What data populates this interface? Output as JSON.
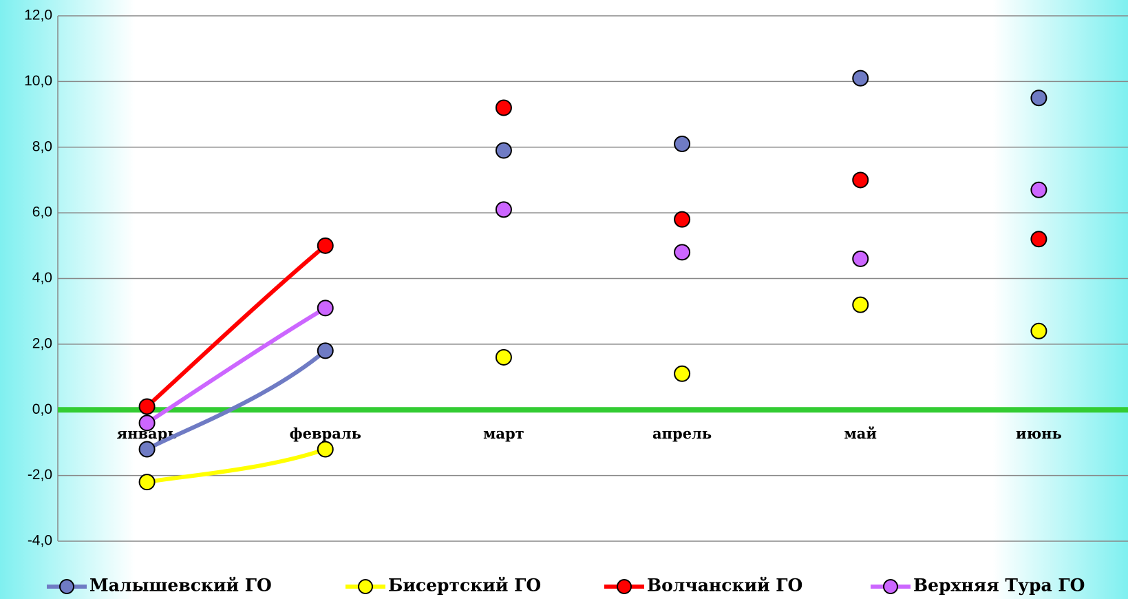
{
  "chart_data": {
    "type": "line",
    "categories": [
      "январь",
      "февраль",
      "март",
      "апрель",
      "май",
      "июнь"
    ],
    "series": [
      {
        "name": "Малышевский ГО",
        "color": "#6f7bc4",
        "values": [
          -1.2,
          1.8,
          7.9,
          8.1,
          10.1,
          9.5
        ]
      },
      {
        "name": "Бисертский ГО",
        "color": "#ffff00",
        "values": [
          -2.2,
          -1.2,
          1.6,
          1.1,
          3.2,
          2.4
        ]
      },
      {
        "name": "Волчанский ГО",
        "color": "#ff0000",
        "values": [
          0.1,
          5.0,
          9.2,
          5.8,
          7.0,
          5.2
        ]
      },
      {
        "name": "Верхняя Тура ГО",
        "color": "#cc66ff",
        "values": [
          -0.4,
          3.1,
          6.1,
          4.8,
          4.6,
          6.7
        ]
      }
    ],
    "ylim": [
      -4,
      12
    ],
    "yticks": [
      {
        "value": -4,
        "label": "-4,0"
      },
      {
        "value": -2,
        "label": "-2,0"
      },
      {
        "value": 0,
        "label": "0,0"
      },
      {
        "value": 2,
        "label": "2,0"
      },
      {
        "value": 4,
        "label": "4,0"
      },
      {
        "value": 6,
        "label": "6,0"
      },
      {
        "value": 8,
        "label": "8,0"
      },
      {
        "value": 10,
        "label": "10,0"
      },
      {
        "value": 12,
        "label": "12,0"
      }
    ],
    "grid": true,
    "smooth": true,
    "zero_line_color": "#33cc33",
    "legend": "bottom"
  }
}
